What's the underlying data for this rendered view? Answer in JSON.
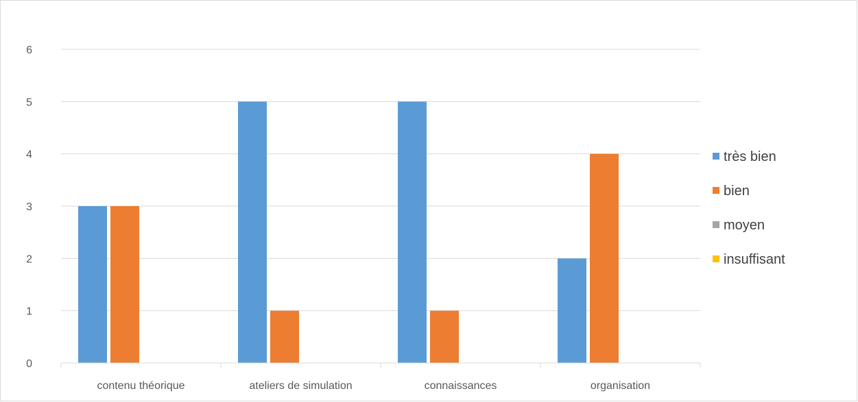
{
  "chart_data": {
    "type": "bar",
    "categories": [
      "contenu théorique",
      "ateliers de simulation",
      "connaissances",
      "organisation"
    ],
    "series": [
      {
        "name": "très bien",
        "color": "#5b9bd5",
        "values": [
          3,
          5,
          5,
          2
        ]
      },
      {
        "name": "bien",
        "color": "#ed7d31",
        "values": [
          3,
          1,
          1,
          4
        ]
      },
      {
        "name": "moyen",
        "color": "#a5a5a5",
        "values": [
          0,
          0,
          0,
          0
        ]
      },
      {
        "name": "insuffisant",
        "color": "#ffc000",
        "values": [
          0,
          0,
          0,
          0
        ]
      }
    ],
    "yticks": [
      0,
      1,
      2,
      3,
      4,
      5,
      6
    ],
    "ylim": [
      0,
      6
    ],
    "grid": true,
    "legend": "right",
    "title": "",
    "xlabel": "",
    "ylabel": ""
  }
}
